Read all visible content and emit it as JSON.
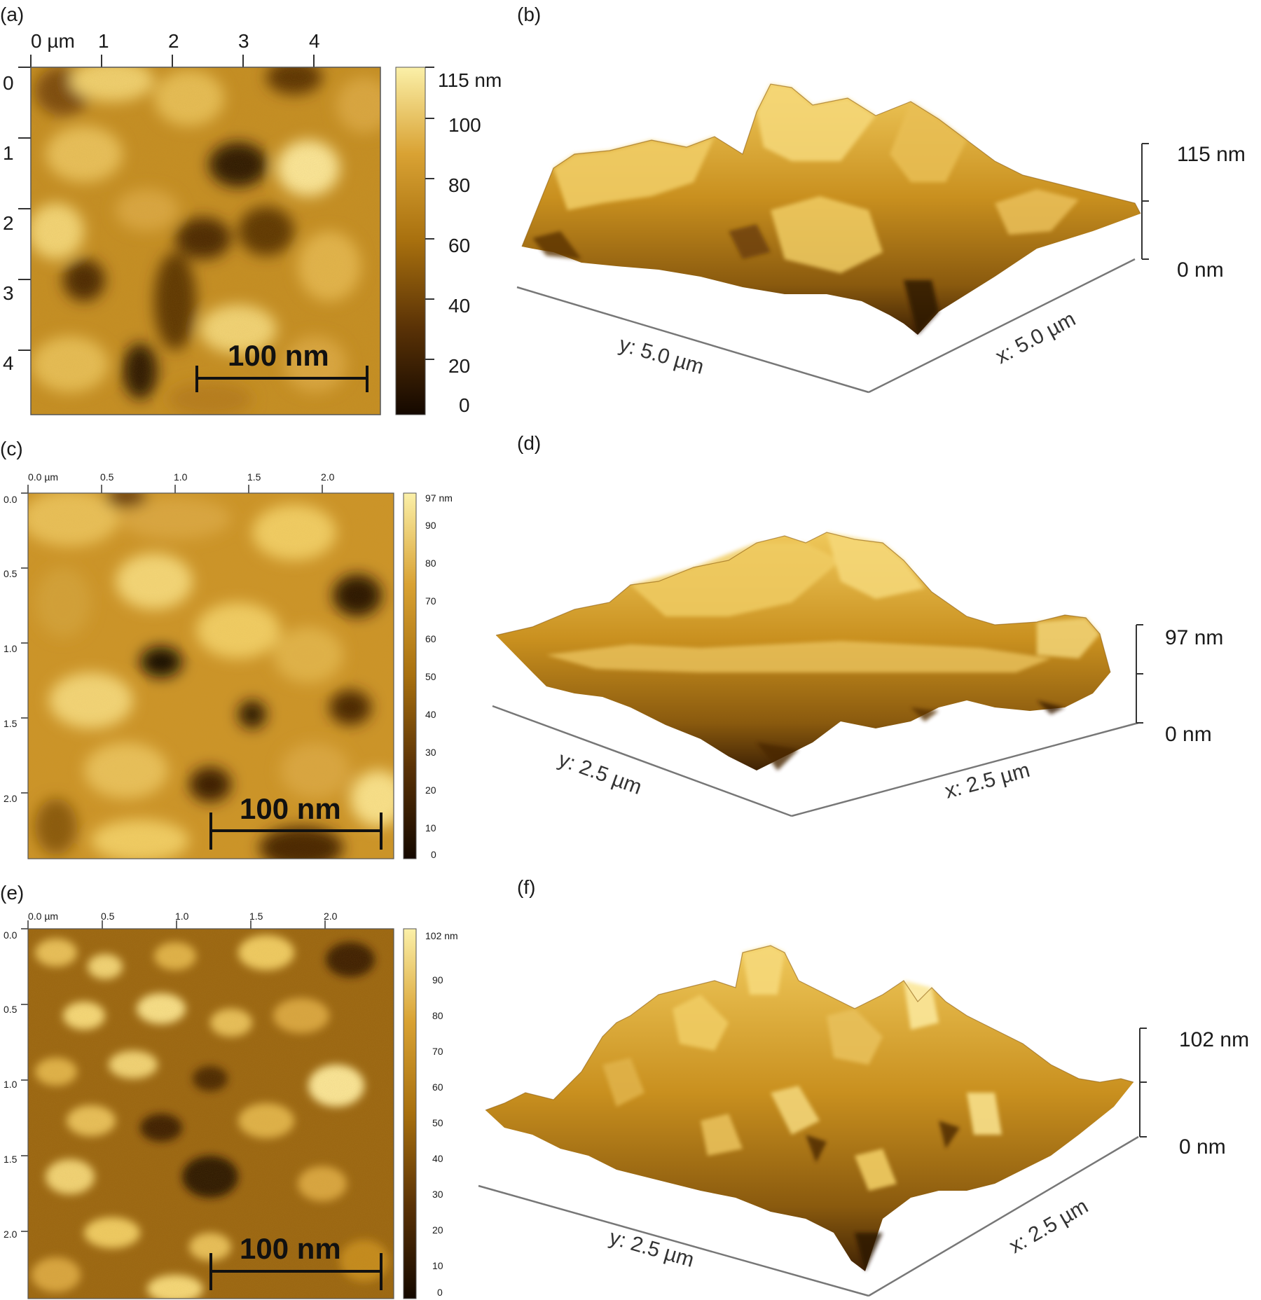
{
  "colors": {
    "dark": "#1a0b00",
    "mid": "#8a5a10",
    "gold": "#c48a1a",
    "light": "#f6df7e"
  },
  "panels": {
    "a": {
      "label": "(a)",
      "x_ticks": [
        "0 µm",
        "1",
        "2",
        "3",
        "4"
      ],
      "y_ticks": [
        "0",
        "1",
        "2",
        "3",
        "4"
      ],
      "colorbar": [
        "115 nm",
        "100",
        "80",
        "60",
        "40",
        "20",
        "0"
      ],
      "scale_bar": "100 nm"
    },
    "b": {
      "label": "(b)",
      "y_axis": "y: 5.0 µm",
      "x_axis": "x: 5.0 µm",
      "z_top": "115 nm",
      "z_bottom": "0 nm"
    },
    "c": {
      "label": "(c)",
      "x_ticks": [
        "0.0 µm",
        "0.5",
        "1.0",
        "1.5",
        "2.0"
      ],
      "y_ticks": [
        "0.0",
        "0.5",
        "1.0",
        "1.5",
        "2.0"
      ],
      "colorbar": [
        "97 nm",
        "90",
        "80",
        "70",
        "60",
        "50",
        "40",
        "30",
        "20",
        "10",
        "0"
      ],
      "scale_bar": "100 nm"
    },
    "d": {
      "label": "(d)",
      "y_axis": "y: 2.5 µm",
      "x_axis": "x: 2.5 µm",
      "z_top": "97 nm",
      "z_bottom": "0 nm"
    },
    "e": {
      "label": "(e)",
      "x_ticks": [
        "0.0 µm",
        "0.5",
        "1.0",
        "1.5",
        "2.0"
      ],
      "y_ticks": [
        "0.0",
        "0.5",
        "1.0",
        "1.5",
        "2.0"
      ],
      "colorbar": [
        "102 nm",
        "90",
        "80",
        "70",
        "60",
        "50",
        "40",
        "30",
        "20",
        "10",
        "0"
      ],
      "scale_bar": "100 nm"
    },
    "f": {
      "label": "(f)",
      "y_axis": "y: 2.5 µm",
      "x_axis": "x: 2.5 µm",
      "z_top": "102 nm",
      "z_bottom": "0 nm"
    }
  }
}
